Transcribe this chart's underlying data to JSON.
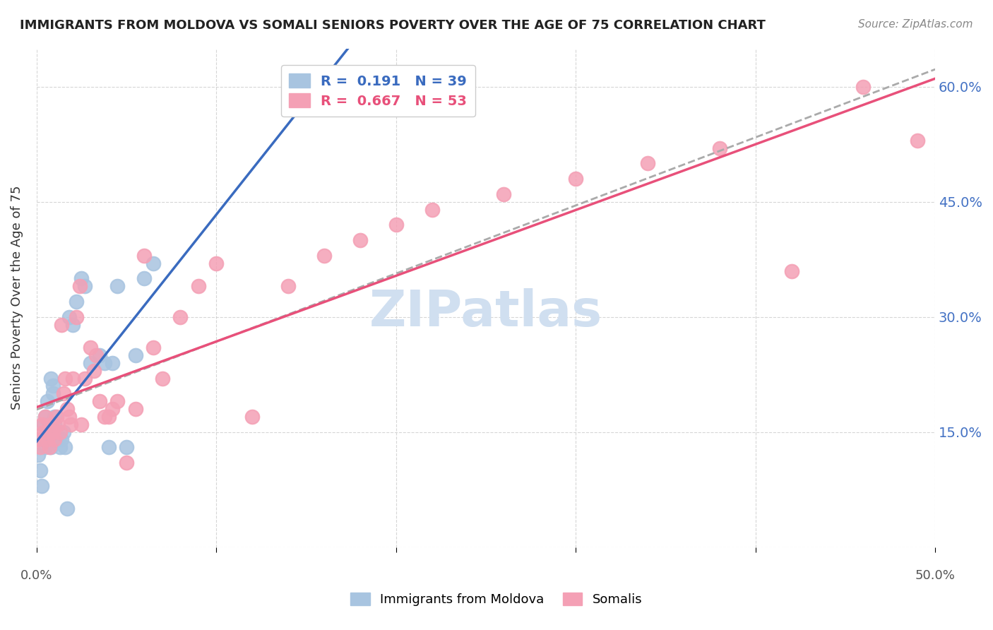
{
  "title": "IMMIGRANTS FROM MOLDOVA VS SOMALI SENIORS POVERTY OVER THE AGE OF 75 CORRELATION CHART",
  "source": "Source: ZipAtlas.com",
  "ylabel": "Seniors Poverty Over the Age of 75",
  "xlim": [
    0,
    0.5
  ],
  "ylim": [
    0,
    0.65
  ],
  "yticks": [
    0.0,
    0.15,
    0.3,
    0.45,
    0.6
  ],
  "xticks": [
    0.0,
    0.1,
    0.2,
    0.3,
    0.4,
    0.5
  ],
  "right_yticks": [
    0.15,
    0.3,
    0.45,
    0.6
  ],
  "right_ytick_labels": [
    "15.0%",
    "30.0%",
    "45.0%",
    "60.0%"
  ],
  "moldova_color": "#a8c4e0",
  "somali_color": "#f4a0b5",
  "moldova_line_color": "#3a6bbf",
  "somali_line_color": "#e8507a",
  "trendline_dashed_color": "#aaaaaa",
  "R_moldova": 0.191,
  "N_moldova": 39,
  "R_somali": 0.667,
  "N_somali": 53,
  "background_color": "#ffffff",
  "watermark": "ZIPatlas",
  "watermark_color": "#d0dff0",
  "moldova_x": [
    0.001,
    0.002,
    0.003,
    0.003,
    0.004,
    0.005,
    0.005,
    0.006,
    0.006,
    0.007,
    0.007,
    0.008,
    0.008,
    0.009,
    0.009,
    0.01,
    0.01,
    0.011,
    0.012,
    0.013,
    0.014,
    0.015,
    0.016,
    0.017,
    0.018,
    0.02,
    0.022,
    0.025,
    0.027,
    0.03,
    0.035,
    0.038,
    0.04,
    0.042,
    0.045,
    0.05,
    0.055,
    0.06,
    0.065
  ],
  "moldova_y": [
    0.12,
    0.1,
    0.08,
    0.14,
    0.16,
    0.17,
    0.13,
    0.15,
    0.19,
    0.16,
    0.14,
    0.13,
    0.22,
    0.21,
    0.2,
    0.17,
    0.16,
    0.14,
    0.14,
    0.13,
    0.14,
    0.15,
    0.13,
    0.05,
    0.3,
    0.29,
    0.32,
    0.35,
    0.34,
    0.24,
    0.25,
    0.24,
    0.13,
    0.24,
    0.34,
    0.13,
    0.25,
    0.35,
    0.37
  ],
  "somali_x": [
    0.001,
    0.002,
    0.003,
    0.004,
    0.005,
    0.006,
    0.007,
    0.008,
    0.009,
    0.01,
    0.011,
    0.012,
    0.013,
    0.014,
    0.015,
    0.016,
    0.017,
    0.018,
    0.019,
    0.02,
    0.022,
    0.024,
    0.025,
    0.027,
    0.03,
    0.032,
    0.033,
    0.035,
    0.038,
    0.04,
    0.042,
    0.045,
    0.05,
    0.055,
    0.06,
    0.065,
    0.07,
    0.08,
    0.09,
    0.1,
    0.12,
    0.14,
    0.16,
    0.18,
    0.2,
    0.22,
    0.26,
    0.3,
    0.34,
    0.38,
    0.42,
    0.46,
    0.49
  ],
  "somali_y": [
    0.14,
    0.13,
    0.16,
    0.15,
    0.17,
    0.14,
    0.13,
    0.16,
    0.15,
    0.14,
    0.17,
    0.16,
    0.15,
    0.29,
    0.2,
    0.22,
    0.18,
    0.17,
    0.16,
    0.22,
    0.3,
    0.34,
    0.16,
    0.22,
    0.26,
    0.23,
    0.25,
    0.19,
    0.17,
    0.17,
    0.18,
    0.19,
    0.11,
    0.18,
    0.38,
    0.26,
    0.22,
    0.3,
    0.34,
    0.37,
    0.17,
    0.34,
    0.38,
    0.4,
    0.42,
    0.44,
    0.46,
    0.48,
    0.5,
    0.52,
    0.36,
    0.6,
    0.53
  ]
}
